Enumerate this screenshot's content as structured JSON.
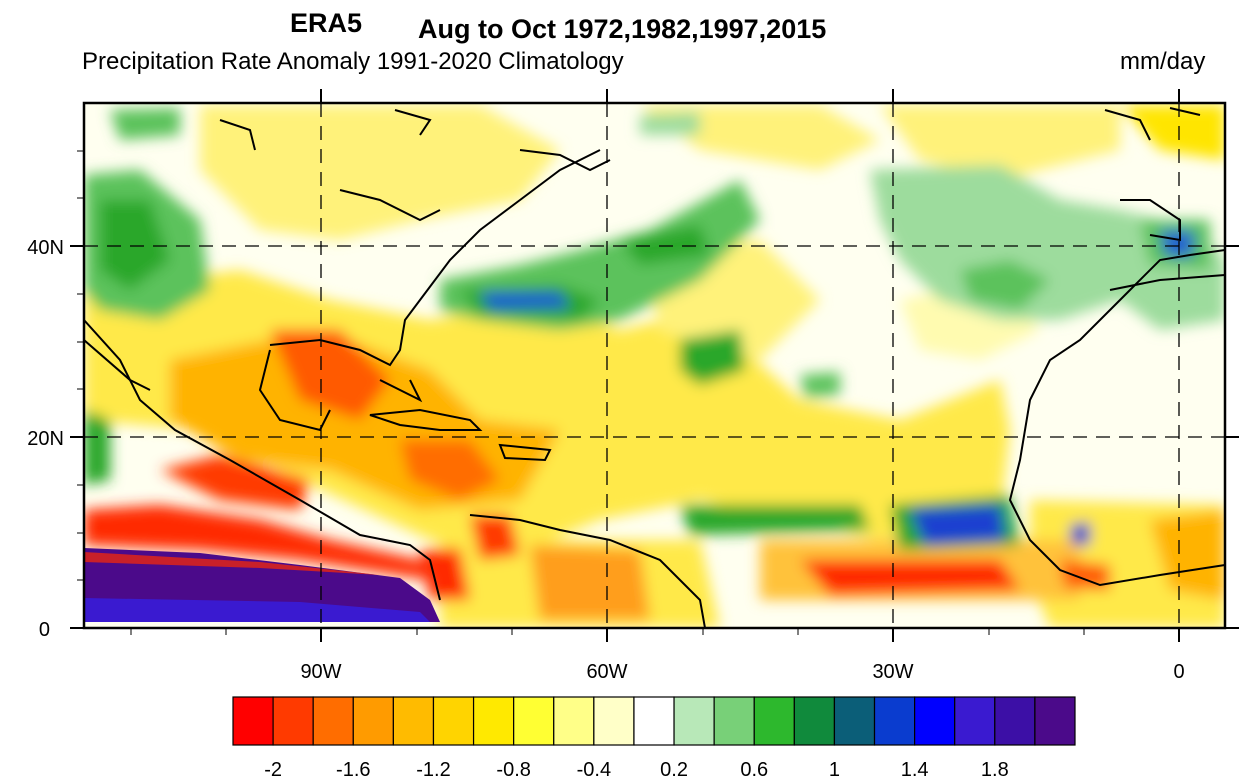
{
  "header": {
    "dataset_label": "ERA5",
    "period_label": "Aug to Oct 1972,1982,1997,2015",
    "field_label": "Precipitation Rate Anomaly  1991-2020 Climatology",
    "units_label": "mm/day"
  },
  "map": {
    "projection": "cylindrical equidistant",
    "lon_range": [
      "115W",
      "5E"
    ],
    "lat_range": [
      "0",
      "55N"
    ],
    "lon_ticks": [
      "90W",
      "60W",
      "30W",
      "0"
    ],
    "lat_ticks": [
      "0",
      "20N",
      "40N"
    ],
    "gridlines": "dashed",
    "coastlines": true
  },
  "colorbar": {
    "tick_labels": [
      "-2",
      "-1.6",
      "-1.2",
      "-0.8",
      "-0.4",
      "0.2",
      "0.6",
      "1",
      "1.4",
      "1.8"
    ],
    "colors": [
      "#ff0000",
      "#ff3a00",
      "#ff6d00",
      "#ff9b00",
      "#ffbb00",
      "#ffd400",
      "#ffe900",
      "#ffff33",
      "#ffff88",
      "#ffffc8",
      "#ffffff",
      "#b8e8b8",
      "#78d078",
      "#2db82d",
      "#108a3c",
      "#0b5e78",
      "#0a3ccf",
      "#0000ff",
      "#3a1ad0",
      "#3c0fa6",
      "#4b0a8a"
    ]
  }
}
